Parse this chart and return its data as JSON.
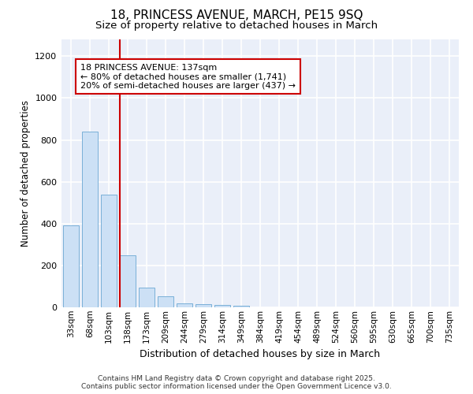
{
  "title_line1": "18, PRINCESS AVENUE, MARCH, PE15 9SQ",
  "title_line2": "Size of property relative to detached houses in March",
  "xlabel": "Distribution of detached houses by size in March",
  "ylabel": "Number of detached properties",
  "categories": [
    "33sqm",
    "68sqm",
    "103sqm",
    "138sqm",
    "173sqm",
    "209sqm",
    "244sqm",
    "279sqm",
    "314sqm",
    "349sqm",
    "384sqm",
    "419sqm",
    "454sqm",
    "489sqm",
    "524sqm",
    "560sqm",
    "595sqm",
    "630sqm",
    "665sqm",
    "700sqm",
    "735sqm"
  ],
  "values": [
    390,
    840,
    540,
    248,
    95,
    52,
    20,
    15,
    11,
    6,
    0,
    0,
    0,
    0,
    0,
    0,
    0,
    0,
    0,
    0,
    0
  ],
  "bar_color": "#cce0f5",
  "bar_edge_color": "#7ab0d8",
  "background_color": "#eaeff9",
  "grid_color": "#ffffff",
  "red_line_bar_index": 3,
  "annotation_line1": "18 PRINCESS AVENUE: 137sqm",
  "annotation_line2": "← 80% of detached houses are smaller (1,741)",
  "annotation_line3": "20% of semi-detached houses are larger (437) →",
  "ylim": [
    0,
    1280
  ],
  "yticks": [
    0,
    200,
    400,
    600,
    800,
    1000,
    1200
  ],
  "footer": "Contains HM Land Registry data © Crown copyright and database right 2025.\nContains public sector information licensed under the Open Government Licence v3.0."
}
